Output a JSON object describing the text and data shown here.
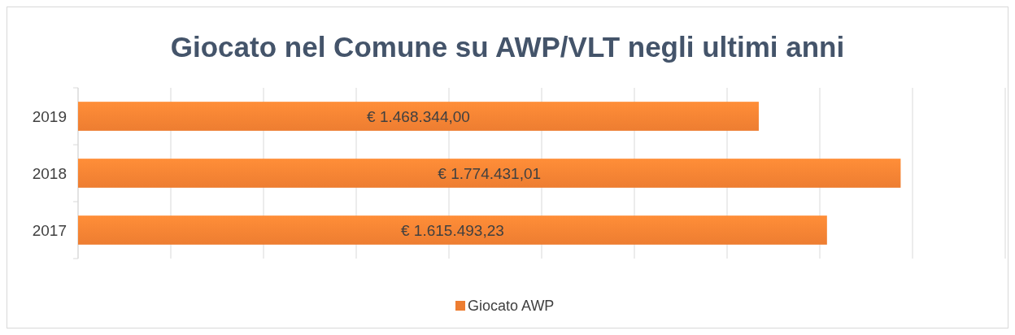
{
  "chart_data": {
    "type": "bar",
    "orientation": "horizontal",
    "title": "Giocato nel Comune su AWP/VLT negli ultimi anni",
    "categories": [
      "2019",
      "2018",
      "2017"
    ],
    "series": [
      {
        "name": "Giocato AWP",
        "color": "#ed7d31",
        "values": [
          1468344.0,
          1774431.01,
          1615493.23
        ],
        "value_labels": [
          "€ 1.468.344,00",
          "€ 1.774.431,01",
          "€ 1.615.493,23"
        ]
      }
    ],
    "xlim": [
      0,
      2000000
    ],
    "xticks": [
      {
        "value": 0,
        "label": null
      },
      {
        "value": 200000,
        "label": null
      },
      {
        "value": 400000,
        "label": null
      },
      {
        "value": 600000,
        "label": null
      },
      {
        "value": 800000,
        "label": null
      },
      {
        "value": 1000000,
        "label": null
      },
      {
        "value": 1200000,
        "label": null
      },
      {
        "value": 1400000,
        "label": null
      },
      {
        "value": 1600000,
        "label": null
      },
      {
        "value": 1800000,
        "label": null
      },
      {
        "value": 2000000,
        "label": null
      }
    ],
    "tick_labels": "y",
    "grid": "x",
    "legend": "bottom"
  }
}
